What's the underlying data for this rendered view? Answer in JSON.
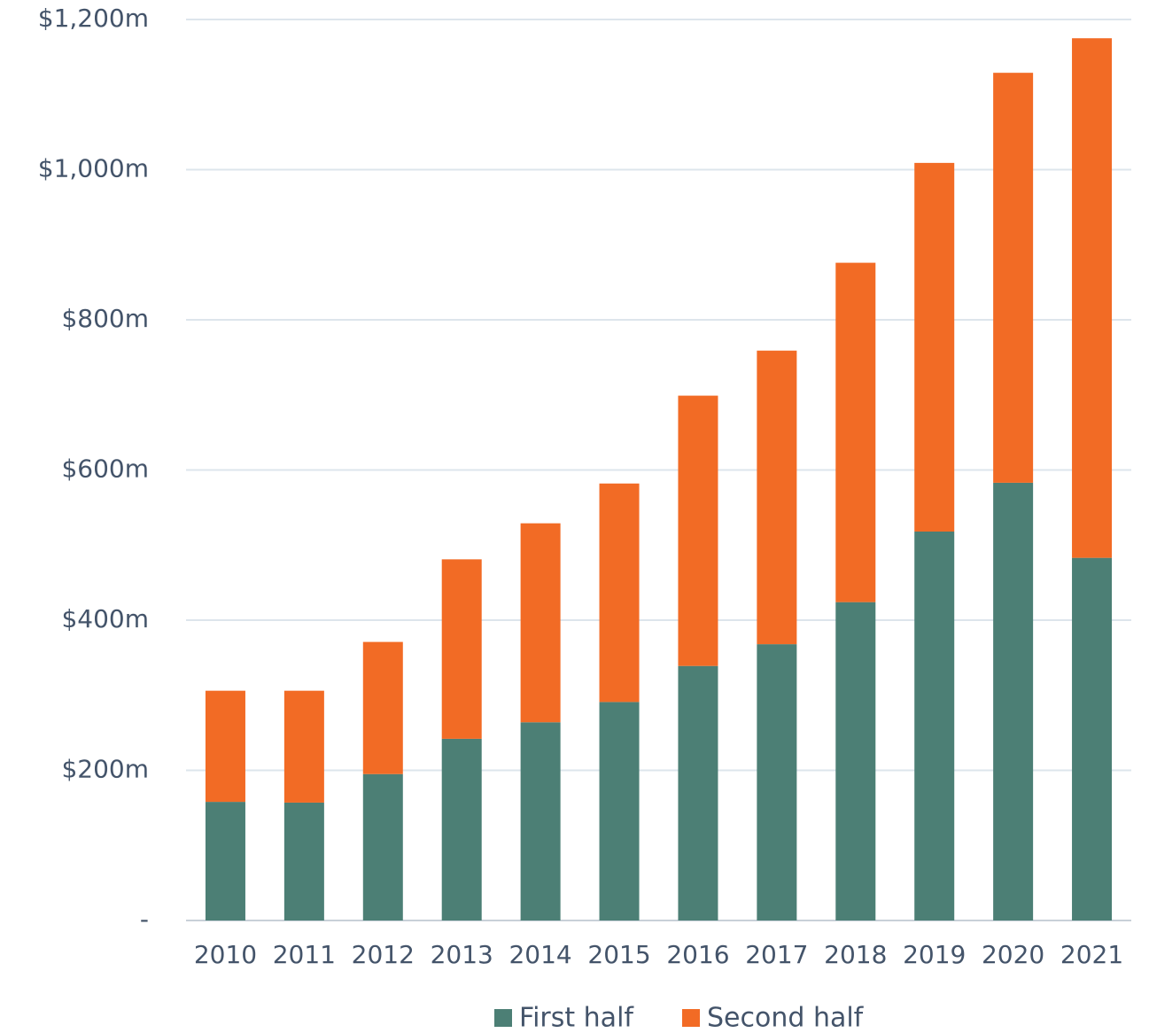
{
  "chart_data": {
    "type": "stacked_bar",
    "categories": [
      "2010",
      "2011",
      "2012",
      "2013",
      "2014",
      "2015",
      "2016",
      "2017",
      "2018",
      "2019",
      "2020",
      "2021"
    ],
    "series": [
      {
        "name": "First half",
        "color": "#4c7f75",
        "values": [
          158,
          157,
          195,
          242,
          264,
          291,
          339,
          368,
          424,
          518,
          583,
          483
        ]
      },
      {
        "name": "Second half",
        "color": "#f26b25",
        "values": [
          148,
          149,
          176,
          239,
          265,
          291,
          360,
          391,
          452,
          491,
          546,
          692
        ]
      }
    ],
    "ylim": [
      0,
      1200
    ],
    "yticks": [
      {
        "value": 0,
        "label": "-"
      },
      {
        "value": 200,
        "label": "$200m"
      },
      {
        "value": 400,
        "label": "$400m"
      },
      {
        "value": 600,
        "label": "$600m"
      },
      {
        "value": 800,
        "label": "$800m"
      },
      {
        "value": 1000,
        "label": "$1,000m"
      },
      {
        "value": 1200,
        "label": "$1,200m"
      }
    ],
    "grid": true,
    "legend": "bottom"
  }
}
